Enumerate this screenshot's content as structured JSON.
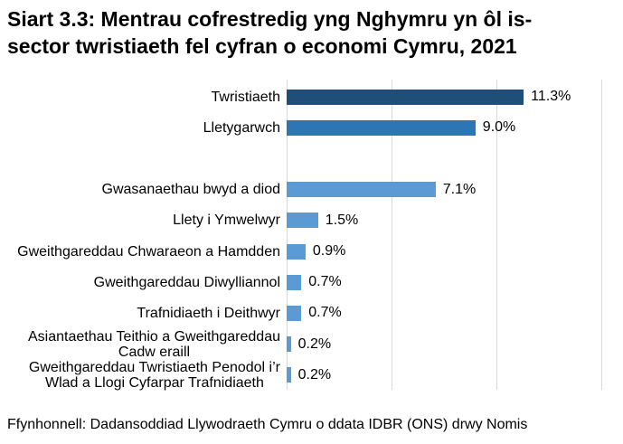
{
  "page": {
    "title": "Siart 3.3: Mentrau cofrestredig yng Nghymru yn ôl is-sector twristiaeth fel cyfran o economi Cymru, 2021",
    "title_lines": [
      "Siart 3.3: Mentrau cofrestredig yng Nghymru yn ôl is-",
      "sector twristiaeth fel cyfran o economi Cymru, 2021"
    ],
    "source": "Ffynhonnell: Dadansoddiad Llywodraeth Cymru o ddata IDBR (ONS) drwy Nomis"
  },
  "colors": {
    "bar_dark": "#1F4E79",
    "bar_medium": "#2E75B6",
    "bar_light": "#5B9BD5",
    "gridline": "#D9D9D9",
    "text": "#000000",
    "background": "#FFFFFF"
  },
  "chart_data": {
    "type": "bar",
    "orientation": "horizontal",
    "title": "Siart 3.3: Mentrau cofrestredig yng Nghymru yn ôl is-sector twristiaeth fel cyfran o economi Cymru, 2021",
    "xlabel": "",
    "ylabel": "",
    "unit": "%",
    "xlim": [
      0,
      15
    ],
    "x_gridlines": [
      0,
      5,
      10,
      15
    ],
    "grid": true,
    "legend": false,
    "categories": [
      "Twristiaeth",
      "Lletygarwch",
      "",
      "Gwasanaethau bwyd a diod",
      "Llety i Ymwelwyr",
      "Gweithgareddau Chwaraeon a Hamdden",
      "Gweithgareddau Diwylliannol",
      "Trafnidiaeth i Deithwyr",
      "Asiantaethau Teithio a Gweithgareddau Cadw eraill",
      "Gweithgareddau Twristiaeth Penodol i’r Wlad a Llogi Cyfarpar Trafnidiaeth"
    ],
    "category_lines": [
      [
        "Twristiaeth"
      ],
      [
        "Lletygarwch"
      ],
      [],
      [
        "Gwasanaethau bwyd a diod"
      ],
      [
        "Llety i Ymwelwyr"
      ],
      [
        "Gweithgareddau Chwaraeon a Hamdden"
      ],
      [
        "Gweithgareddau Diwylliannol"
      ],
      [
        "Trafnidiaeth i Deithwyr"
      ],
      [
        "Asiantaethau Teithio a Gweithgareddau",
        "Cadw eraill"
      ],
      [
        "Gweithgareddau Twristiaeth Penodol i’r",
        "Wlad a Llogi Cyfarpar Trafnidiaeth"
      ]
    ],
    "values": [
      11.3,
      9.0,
      null,
      7.1,
      1.5,
      0.9,
      0.7,
      0.7,
      0.2,
      0.2
    ],
    "data_labels": [
      "11.3%",
      "9.0%",
      "",
      "7.1%",
      "1.5%",
      "0.9%",
      "0.7%",
      "0.7%",
      "0.2%",
      "0.2%"
    ],
    "bar_colors": [
      "#1F4E79",
      "#2E75B6",
      null,
      "#5B9BD5",
      "#5B9BD5",
      "#5B9BD5",
      "#5B9BD5",
      "#5B9BD5",
      "#5B9BD5",
      "#5B9BD5"
    ]
  }
}
